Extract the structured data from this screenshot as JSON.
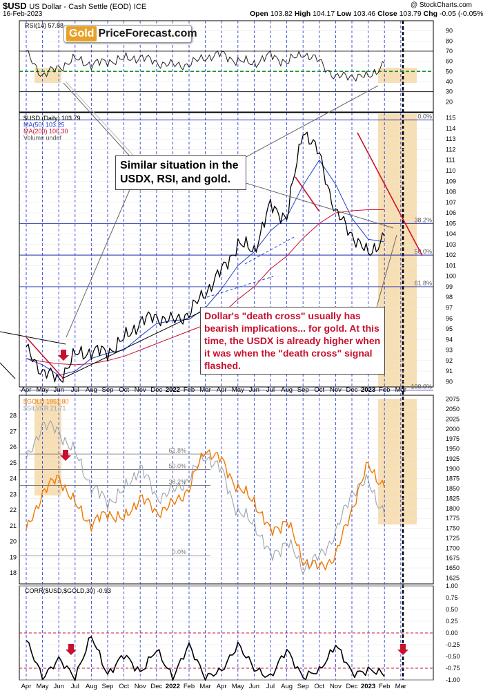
{
  "header": {
    "symbol": "$USD",
    "name": "US Dollar - Cash Settle (EOD)",
    "exchange": "ICE",
    "date": "16-Feb-2023",
    "open_label": "Open",
    "open": "103.82",
    "high_label": "High",
    "high": "104.17",
    "low_label": "Low",
    "low": "103.46",
    "close_label": "Close",
    "close": "103.79",
    "chg_label": "Chg",
    "chg": "-0.05 (-0.05%)",
    "credit": "@ StockCharts.com"
  },
  "logo": {
    "part1": "Gold",
    "part2": "PriceForecast.com"
  },
  "callouts": {
    "similar": "Similar situation in the USDX, RSI, and gold.",
    "death_cross": "Dollar's \"death cross\" usually has bearish implications... for gold. At this time, the USDX is already higher when it was when the \"death cross\" signal flashed."
  },
  "colors": {
    "usd": "#000000",
    "ma50": "#1f3fcc",
    "ma200": "#c8102e",
    "gold": "#f07800",
    "silver": "#9aa3ad",
    "highlight": "#f6d9a8",
    "rsi_ref": "#1a8c2a",
    "arrow": "#c8102e"
  },
  "chart_data": [
    {
      "type": "line",
      "panel": "rsi",
      "title": "RSI(14) 57.88",
      "ylim": [
        10,
        100
      ],
      "ticks": [
        "90",
        "80",
        "70",
        "60",
        "50",
        "40",
        "30",
        "20"
      ],
      "reference_lines": [
        70,
        50,
        30
      ],
      "x": [
        "2021-04",
        "2021-05",
        "2021-06",
        "2021-07",
        "2021-08",
        "2021-09",
        "2021-10",
        "2021-11",
        "2021-12",
        "2022-01",
        "2022-02",
        "2022-03",
        "2022-04",
        "2022-05",
        "2022-06",
        "2022-07",
        "2022-08",
        "2022-09",
        "2022-10",
        "2022-11",
        "2022-12",
        "2023-01",
        "2023-02"
      ],
      "values": [
        68,
        46,
        54,
        62,
        57,
        60,
        62,
        64,
        59,
        56,
        57,
        64,
        67,
        60,
        58,
        66,
        59,
        68,
        60,
        44,
        46,
        44,
        58
      ]
    },
    {
      "type": "line",
      "panel": "usd",
      "title": "$USD (Daily) 103.79",
      "legend": [
        "$USD (Daily) 103.79",
        "MA(50) 103.25",
        "MA(200) 106.30",
        "Volume undef"
      ],
      "ylim": [
        89.5,
        115.5
      ],
      "ticks": [
        "115",
        "114",
        "113",
        "112",
        "111",
        "110",
        "109",
        "108",
        "107",
        "106",
        "105",
        "104",
        "103",
        "102",
        "101",
        "100",
        "99",
        "98",
        "97",
        "96",
        "95",
        "94",
        "93",
        "92",
        "91",
        "90"
      ],
      "fib_levels": [
        {
          "label": "0.0%",
          "value": 114.8
        },
        {
          "label": "38.2%",
          "value": 105.0
        },
        {
          "label": "50.0%",
          "value": 102.0
        },
        {
          "label": "61.8%",
          "value": 99.0
        },
        {
          "label": "100.0%",
          "value": 89.2
        }
      ],
      "x": [
        "2021-04",
        "2021-05",
        "2021-06",
        "2021-07",
        "2021-08",
        "2021-09",
        "2021-10",
        "2021-11",
        "2021-12",
        "2022-01",
        "2022-02",
        "2022-03",
        "2022-04",
        "2022-05",
        "2022-06",
        "2022-07",
        "2022-08",
        "2022-09",
        "2022-10",
        "2022-11",
        "2022-12",
        "2023-01",
        "2023-02"
      ],
      "series": [
        {
          "name": "$USD (Daily) 103.79",
          "values": [
            93.0,
            91.0,
            90.2,
            92.5,
            92.9,
            92.8,
            94.0,
            95.7,
            96.2,
            95.7,
            96.5,
            98.5,
            100.5,
            103.0,
            102.5,
            106.7,
            105.5,
            114.0,
            111.5,
            106.0,
            104.0,
            102.0,
            103.8
          ]
        },
        {
          "name": "MA(50) 103.25",
          "values": [
            92.2,
            91.6,
            90.6,
            91.0,
            92.2,
            92.7,
            93.0,
            94.3,
            95.5,
            95.8,
            95.9,
            97.0,
            98.8,
            101.0,
            102.3,
            104.3,
            105.6,
            108.6,
            111.0,
            108.7,
            105.5,
            103.5,
            103.25
          ]
        },
        {
          "name": "MA(200) 106.30",
          "values": [
            92.2,
            91.9,
            91.7,
            91.6,
            91.7,
            92.0,
            92.4,
            93.0,
            93.6,
            94.2,
            94.8,
            95.4,
            96.4,
            97.8,
            99.0,
            100.7,
            101.9,
            103.6,
            105.0,
            106.0,
            106.2,
            106.3,
            106.3
          ]
        }
      ]
    },
    {
      "type": "line",
      "panel": "gold",
      "title": "$GOLD 1851.80",
      "legend": [
        "$GOLD 1851.80",
        "$SILVER 21.71"
      ],
      "ylim_gold": [
        1610,
        2085
      ],
      "ylim_silver": [
        17.3,
        29.3
      ],
      "ticks_gold": [
        "2075",
        "2050",
        "2025",
        "2000",
        "1975",
        "1950",
        "1925",
        "1900",
        "1875",
        "1850",
        "1825",
        "1800",
        "1775",
        "1750",
        "1725",
        "1700",
        "1675",
        "1650",
        "1625"
      ],
      "ticks_silver": [
        "28",
        "27",
        "26",
        "25",
        "24",
        "23",
        "22",
        "21",
        "20",
        "19",
        "18"
      ],
      "fib_levels": [
        {
          "label": "61.8%",
          "value": 1937
        },
        {
          "label": "50.0%",
          "value": 1898
        },
        {
          "label": "38.2%",
          "value": 1858
        },
        {
          "label": "0.0%",
          "value": 1681
        }
      ],
      "x": [
        "2021-04",
        "2021-05",
        "2021-06",
        "2021-07",
        "2021-08",
        "2021-09",
        "2021-10",
        "2021-11",
        "2021-12",
        "2022-01",
        "2022-02",
        "2022-03",
        "2022-04",
        "2022-05",
        "2022-06",
        "2022-07",
        "2022-08",
        "2022-09",
        "2022-10",
        "2022-11",
        "2022-12",
        "2023-01",
        "2023-02"
      ],
      "series": [
        {
          "name": "$GOLD 1851.80",
          "values": [
            1740,
            1840,
            1880,
            1810,
            1760,
            1790,
            1770,
            1830,
            1790,
            1810,
            1850,
            1950,
            1920,
            1850,
            1820,
            1740,
            1770,
            1670,
            1650,
            1680,
            1800,
            1910,
            1851.8
          ]
        },
        {
          "name": "$SILVER 21.71",
          "values": [
            25.0,
            27.5,
            27.0,
            25.6,
            23.5,
            22.5,
            23.2,
            24.8,
            22.8,
            23.2,
            24.0,
            25.5,
            24.5,
            21.8,
            21.2,
            19.0,
            20.0,
            18.3,
            19.0,
            20.5,
            23.2,
            23.8,
            21.71
          ]
        }
      ]
    },
    {
      "type": "line",
      "panel": "corr",
      "title": "CORR($USD,$GOLD,30) -0.93",
      "ylim": [
        -1.0,
        1.0
      ],
      "ticks": [
        "1.00",
        "0.75",
        "0.50",
        "0.25",
        "0.00",
        "-0.25",
        "-0.50",
        "-0.75",
        "-1.00"
      ],
      "x": [
        "2021-04",
        "2021-05",
        "2021-06",
        "2021-07",
        "2021-08",
        "2021-09",
        "2021-10",
        "2021-11",
        "2021-12",
        "2022-01",
        "2022-02",
        "2022-03",
        "2022-04",
        "2022-05",
        "2022-06",
        "2022-07",
        "2022-08",
        "2022-09",
        "2022-10",
        "2022-11",
        "2022-12",
        "2023-01",
        "2023-02"
      ],
      "values": [
        -0.2,
        -0.9,
        -0.6,
        -0.9,
        -0.1,
        -0.85,
        -0.5,
        -0.8,
        -0.4,
        -0.9,
        -0.3,
        -0.9,
        -0.85,
        -0.2,
        -0.8,
        -0.9,
        -0.4,
        -0.9,
        -0.85,
        -0.2,
        -0.9,
        -0.75,
        -0.93
      ]
    }
  ],
  "x_axis": {
    "labels": [
      "Apr",
      "May",
      "Jun",
      "Jul",
      "Aug",
      "Sep",
      "Oct",
      "Nov",
      "Dec",
      "2022",
      "Feb",
      "Mar",
      "Apr",
      "May",
      "Jun",
      "Jul",
      "Aug",
      "Sep",
      "Oct",
      "Nov",
      "Dec",
      "2023",
      "Feb",
      "Mar"
    ]
  }
}
